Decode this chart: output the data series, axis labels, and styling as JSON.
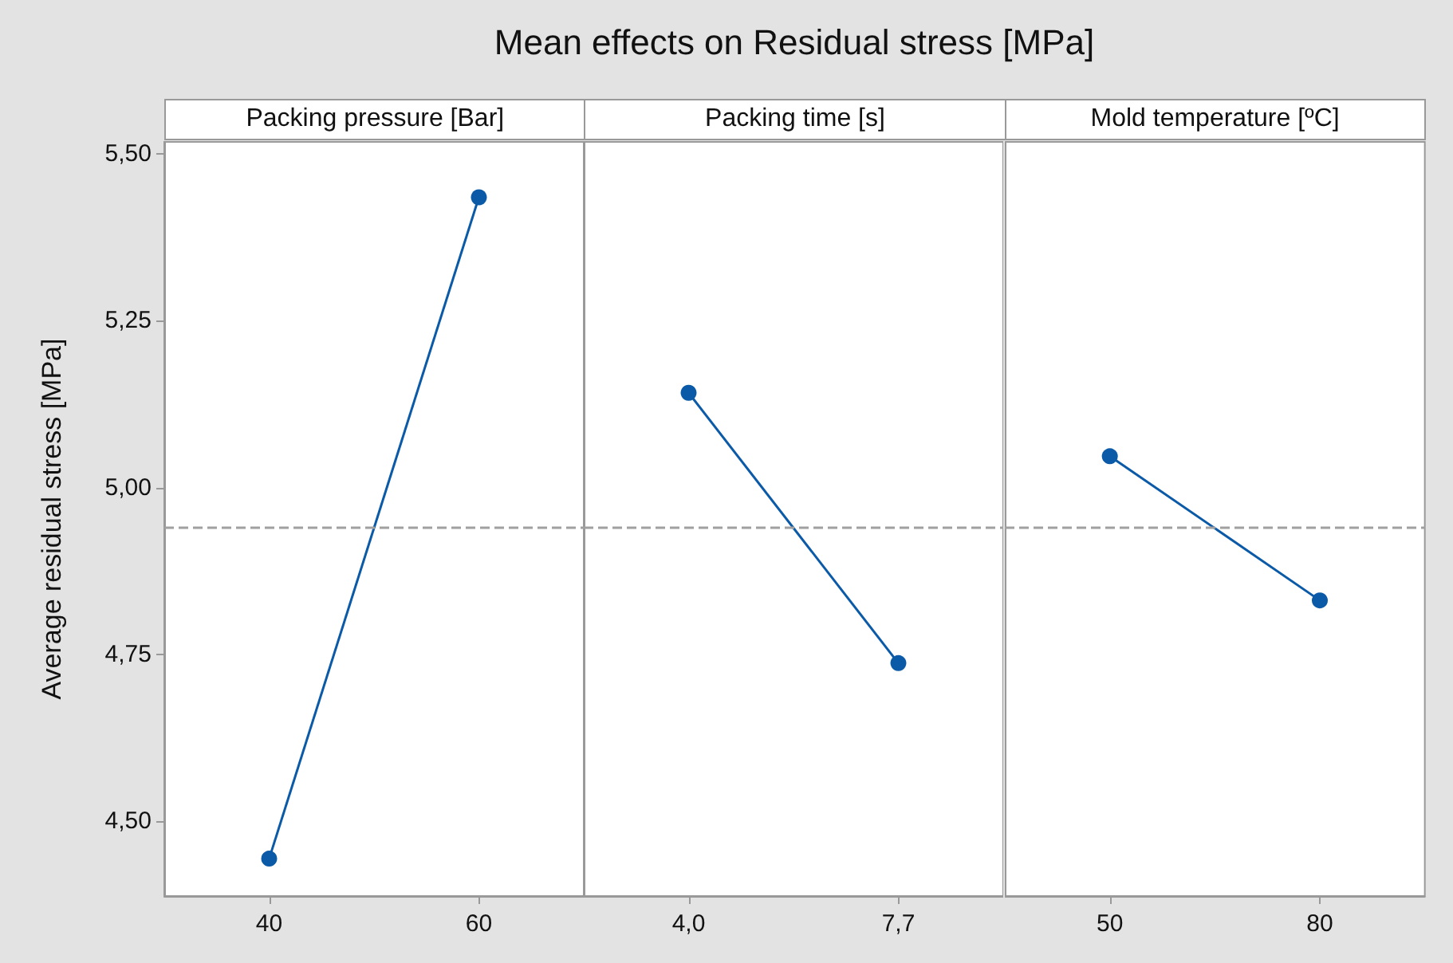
{
  "chart_data": [
    {
      "type": "line",
      "title": "Mean effects on Residual stress [MPa]",
      "subtitle": "Packing pressure [Bar]",
      "ylabel": "Average residual stress [MPa]",
      "categories": [
        "40",
        "60"
      ],
      "values": [
        4.444,
        5.435
      ],
      "color": "#0b5aa8",
      "marker": "circle",
      "ylim": [
        4.388,
        5.518
      ],
      "yticks": [
        {
          "value": 4.5,
          "label": "4,50"
        },
        {
          "value": 4.75,
          "label": "4,75"
        },
        {
          "value": 5.0,
          "label": "5,00"
        },
        {
          "value": 5.25,
          "label": "5,25"
        },
        {
          "value": 5.5,
          "label": "5,50"
        }
      ],
      "ref_lines": [
        {
          "axis": "y",
          "value": 4.94,
          "color": "#a0a0a0",
          "line_style": "dashed"
        }
      ]
    },
    {
      "type": "line",
      "subtitle": "Packing time [s]",
      "categories": [
        "4,0",
        "7,7"
      ],
      "values": [
        5.142,
        4.737
      ],
      "color": "#0b5aa8",
      "marker": "circle",
      "ylim": [
        4.388,
        5.518
      ],
      "tick_labels": "x",
      "ref_lines": [
        {
          "axis": "y",
          "value": 4.94,
          "color": "#a0a0a0",
          "line_style": "dashed"
        }
      ]
    },
    {
      "type": "line",
      "subtitle": "Mold temperature [ºC]",
      "categories": [
        "50",
        "80"
      ],
      "values": [
        5.047,
        4.831
      ],
      "color": "#0b5aa8",
      "marker": "circle",
      "ylim": [
        4.388,
        5.518
      ],
      "tick_labels": "x",
      "ref_lines": [
        {
          "axis": "y",
          "value": 4.94,
          "color": "#a0a0a0",
          "line_style": "dashed"
        }
      ]
    }
  ]
}
